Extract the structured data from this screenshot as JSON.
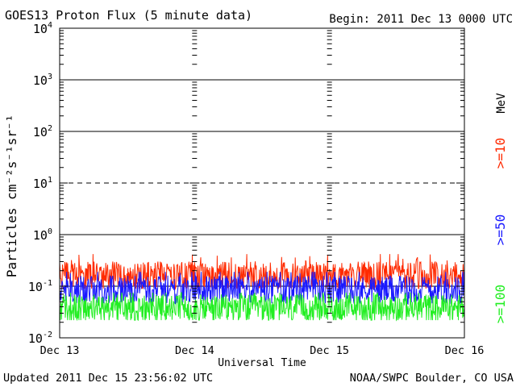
{
  "chart_data": {
    "type": "line",
    "title": "GOES13 Proton Flux (5 minute data)",
    "begin_label": "Begin: 2011 Dec 13 0000 UTC",
    "xlabel": "Universal Time",
    "ylabel": "Particles cm⁻²s⁻¹sr⁻¹",
    "y_scale": "log",
    "ylim": [
      0.01,
      10000
    ],
    "y_ticks": [
      {
        "value": 0.01,
        "base": "10",
        "exp": "-2"
      },
      {
        "value": 0.1,
        "base": "10",
        "exp": "-1"
      },
      {
        "value": 1,
        "base": "10",
        "exp": "0"
      },
      {
        "value": 10,
        "base": "10",
        "exp": "1"
      },
      {
        "value": 100,
        "base": "10",
        "exp": "2"
      },
      {
        "value": 1000,
        "base": "10",
        "exp": "3"
      },
      {
        "value": 10000,
        "base": "10",
        "exp": "4"
      }
    ],
    "dashed_gridline_value": 10,
    "x_ticks": [
      {
        "day": 0,
        "label": "Dec 13"
      },
      {
        "day": 1,
        "label": "Dec 14"
      },
      {
        "day": 2,
        "label": "Dec 15"
      },
      {
        "day": 3,
        "label": "Dec 16"
      }
    ],
    "xlim": [
      0,
      3
    ],
    "data_end_day": 2.9972,
    "energy_unit": "MeV",
    "series": [
      {
        "name": ">=10",
        "color": "#ff2a00",
        "base_value": 0.16,
        "min_value": 0.09,
        "max_value": 0.42
      },
      {
        "name": ">=50",
        "color": "#1a1aff",
        "base_value": 0.085,
        "min_value": 0.045,
        "max_value": 0.19
      },
      {
        "name": ">=100",
        "color": "#22ee22",
        "base_value": 0.037,
        "min_value": 0.022,
        "max_value": 0.075
      }
    ]
  },
  "footer": {
    "updated": "Updated 2011 Dec 15 23:56:02 UTC",
    "source": "NOAA/SWPC Boulder, CO USA"
  }
}
